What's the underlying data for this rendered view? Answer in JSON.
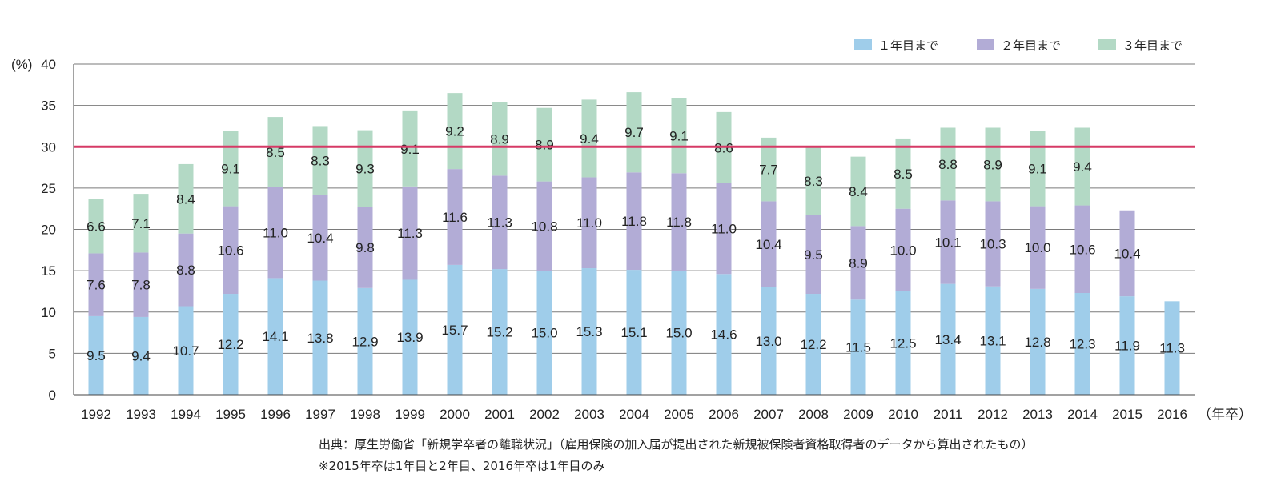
{
  "chart_data": {
    "type": "bar",
    "stacked": true,
    "categories": [
      "1992",
      "1993",
      "1994",
      "1995",
      "1996",
      "1997",
      "1998",
      "1999",
      "2000",
      "2001",
      "2002",
      "2003",
      "2004",
      "2005",
      "2006",
      "2007",
      "2008",
      "2009",
      "2010",
      "2011",
      "2012",
      "2013",
      "2014",
      "2015",
      "2016"
    ],
    "series": [
      {
        "name": "１年目まで",
        "color": "#9fcdea",
        "values": [
          9.5,
          9.4,
          10.7,
          12.2,
          14.1,
          13.8,
          12.9,
          13.9,
          15.7,
          15.2,
          15.0,
          15.3,
          15.1,
          15.0,
          14.6,
          13.0,
          12.2,
          11.5,
          12.5,
          13.4,
          13.1,
          12.8,
          12.3,
          11.9,
          11.3
        ]
      },
      {
        "name": "２年目まで",
        "color": "#b2acd6",
        "values": [
          7.6,
          7.8,
          8.8,
          10.6,
          11.0,
          10.4,
          9.8,
          11.3,
          11.6,
          11.3,
          10.8,
          11.0,
          11.8,
          11.8,
          11.0,
          10.4,
          9.5,
          8.9,
          10.0,
          10.1,
          10.3,
          10.0,
          10.6,
          10.4,
          null
        ]
      },
      {
        "name": "３年目まで",
        "color": "#b3d9c5",
        "values": [
          6.6,
          7.1,
          8.4,
          9.1,
          8.5,
          8.3,
          9.3,
          9.1,
          9.2,
          8.9,
          8.9,
          9.4,
          9.7,
          9.1,
          8.6,
          7.7,
          8.3,
          8.4,
          8.5,
          8.8,
          8.9,
          9.1,
          9.4,
          null,
          null
        ]
      }
    ],
    "ylabel": "(%)",
    "xlabel_suffix": "（年卒）",
    "ylim": [
      0,
      40
    ],
    "yticks": [
      0,
      5,
      10,
      15,
      20,
      25,
      30,
      35,
      40
    ],
    "grid": true,
    "reference_line": {
      "value": 30,
      "color": "#d63a66"
    },
    "legend_position": "top-right"
  },
  "notes": {
    "source": "出典：厚生労働省「新規学卒者の離職状況」（雇用保険の加入届が提出された新規被保険者資格取得者のデータから算出されたもの）",
    "footnote": "※2015年卒は1年目と2年目、2016年卒は1年目のみ"
  }
}
